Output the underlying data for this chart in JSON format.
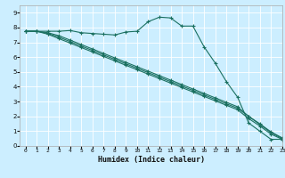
{
  "title": "",
  "xlabel": "Humidex (Indice chaleur)",
  "bg_color": "#cceeff",
  "grid_color": "#ffffff",
  "line_color": "#1a7060",
  "xlim": [
    -0.5,
    23
  ],
  "ylim": [
    0,
    9.5
  ],
  "xticks": [
    0,
    1,
    2,
    3,
    4,
    5,
    6,
    7,
    8,
    9,
    10,
    11,
    12,
    13,
    14,
    15,
    16,
    17,
    18,
    19,
    20,
    21,
    22,
    23
  ],
  "yticks": [
    0,
    1,
    2,
    3,
    4,
    5,
    6,
    7,
    8,
    9
  ],
  "line1_x": [
    0,
    1,
    2,
    3,
    4,
    5,
    6,
    7,
    8,
    9,
    10,
    11,
    12,
    13,
    14,
    15,
    16,
    17,
    18,
    19,
    20,
    21,
    22,
    23
  ],
  "line1_y": [
    7.75,
    7.75,
    7.75,
    7.75,
    7.8,
    7.65,
    7.6,
    7.55,
    7.5,
    7.7,
    7.75,
    8.4,
    8.7,
    8.65,
    8.1,
    8.1,
    6.7,
    5.6,
    4.35,
    3.3,
    1.55,
    1.0,
    0.45,
    0.45
  ],
  "line2_x": [
    0,
    1,
    2,
    3,
    4,
    5,
    6,
    7,
    8,
    9,
    10,
    11,
    12,
    13,
    14,
    15,
    16,
    17,
    18,
    19,
    20,
    21,
    22,
    23
  ],
  "line2_y": [
    7.75,
    7.75,
    7.65,
    7.45,
    7.15,
    6.85,
    6.55,
    6.25,
    5.95,
    5.65,
    5.35,
    5.05,
    4.75,
    4.45,
    4.15,
    3.85,
    3.55,
    3.25,
    2.95,
    2.65,
    2.0,
    1.5,
    0.95,
    0.55
  ],
  "line3_x": [
    0,
    1,
    2,
    3,
    4,
    5,
    6,
    7,
    8,
    9,
    10,
    11,
    12,
    13,
    14,
    15,
    16,
    17,
    18,
    19,
    20,
    21,
    22,
    23
  ],
  "line3_y": [
    7.75,
    7.75,
    7.6,
    7.35,
    7.05,
    6.75,
    6.45,
    6.15,
    5.85,
    5.55,
    5.25,
    4.95,
    4.65,
    4.35,
    4.05,
    3.75,
    3.45,
    3.15,
    2.85,
    2.55,
    2.0,
    1.45,
    0.9,
    0.5
  ],
  "line4_x": [
    0,
    1,
    2,
    3,
    4,
    5,
    6,
    7,
    8,
    9,
    10,
    11,
    12,
    13,
    14,
    15,
    16,
    17,
    18,
    19,
    20,
    21,
    22,
    23
  ],
  "line4_y": [
    7.75,
    7.75,
    7.55,
    7.25,
    6.95,
    6.65,
    6.35,
    6.05,
    5.75,
    5.45,
    5.15,
    4.85,
    4.55,
    4.25,
    3.95,
    3.65,
    3.35,
    3.05,
    2.75,
    2.45,
    1.85,
    1.35,
    0.8,
    0.45
  ]
}
